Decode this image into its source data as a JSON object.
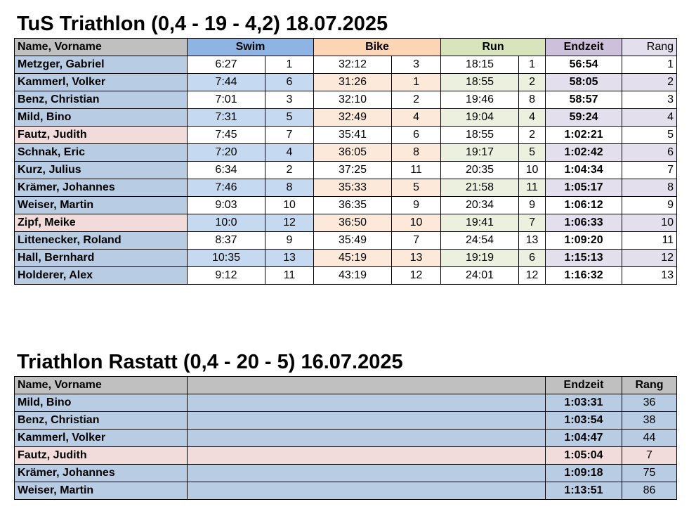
{
  "table1": {
    "title": "TuS Triathlon (0,4 - 19 - 4,2) 18.07.2025",
    "headers": {
      "name": "Name, Vorname",
      "swim": "Swim",
      "bike": "Bike",
      "run": "Run",
      "endzeit": "Endzeit",
      "rang": "Rang"
    },
    "colors": {
      "header_name": "#c0c0c0",
      "swim_header": "#8db4e2",
      "bike_header": "#fcd5b4",
      "run_header": "#d8e4bc",
      "endzeit_header": "#ccc0da",
      "rang_header": "#e4dfec",
      "name_blue": "#b8cce4",
      "name_pink": "#f2dcdb",
      "swim_cell": "#c5d9f1",
      "bike_cell": "#fde9d9",
      "run_cell": "#ebf1de",
      "end_cell": "#e4dfec"
    },
    "rows": [
      {
        "name": "Metzger, Gabriel",
        "swim": "6:27",
        "swim_rank": "1",
        "bike": "32:12",
        "bike_rank": "3",
        "run": "18:15",
        "run_rank": "1",
        "endzeit": "56:54",
        "rang": "1",
        "pink": false,
        "tint": false
      },
      {
        "name": "Kammerl, Volker",
        "swim": "7:44",
        "swim_rank": "6",
        "bike": "31:26",
        "bike_rank": "1",
        "run": "18:55",
        "run_rank": "2",
        "endzeit": "58:05",
        "rang": "2",
        "pink": false,
        "tint": true
      },
      {
        "name": "Benz, Christian",
        "swim": "7:01",
        "swim_rank": "3",
        "bike": "32:10",
        "bike_rank": "2",
        "run": "19:46",
        "run_rank": "8",
        "endzeit": "58:57",
        "rang": "3",
        "pink": false,
        "tint": false
      },
      {
        "name": "Mild, Bino",
        "swim": "7:31",
        "swim_rank": "5",
        "bike": "32:49",
        "bike_rank": "4",
        "run": "19:04",
        "run_rank": "4",
        "endzeit": "59:24",
        "rang": "4",
        "pink": false,
        "tint": true
      },
      {
        "name": "Fautz, Judith",
        "swim": "7:45",
        "swim_rank": "7",
        "bike": "35:41",
        "bike_rank": "6",
        "run": "18:55",
        "run_rank": "2",
        "endzeit": "1:02:21",
        "rang": "5",
        "pink": true,
        "tint": false
      },
      {
        "name": "Schnak, Eric",
        "swim": "7:20",
        "swim_rank": "4",
        "bike": "36:05",
        "bike_rank": "8",
        "run": "19:17",
        "run_rank": "5",
        "endzeit": "1:02:42",
        "rang": "6",
        "pink": false,
        "tint": true
      },
      {
        "name": "Kurz, Julius",
        "swim": "6:34",
        "swim_rank": "2",
        "bike": "37:25",
        "bike_rank": "11",
        "run": "20:35",
        "run_rank": "10",
        "endzeit": "1:04:34",
        "rang": "7",
        "pink": false,
        "tint": false
      },
      {
        "name": "Krämer, Johannes",
        "swim": "7:46",
        "swim_rank": "8",
        "bike": "35:33",
        "bike_rank": "5",
        "run": "21:58",
        "run_rank": "11",
        "endzeit": "1:05:17",
        "rang": "8",
        "pink": false,
        "tint": true
      },
      {
        "name": "Weiser, Martin",
        "swim": "9:03",
        "swim_rank": "10",
        "bike": "36:35",
        "bike_rank": "9",
        "run": "20:34",
        "run_rank": "9",
        "endzeit": "1:06:12",
        "rang": "9",
        "pink": false,
        "tint": false
      },
      {
        "name": "Zipf, Meike",
        "swim": "10:0",
        "swim_rank": "12",
        "bike": "36:50",
        "bike_rank": "10",
        "run": "19:41",
        "run_rank": "7",
        "endzeit": "1:06:33",
        "rang": "10",
        "pink": true,
        "tint": true
      },
      {
        "name": "Littenecker, Roland",
        "swim": "8:37",
        "swim_rank": "9",
        "bike": "35:49",
        "bike_rank": "7",
        "run": "24:54",
        "run_rank": "13",
        "endzeit": "1:09:20",
        "rang": "11",
        "pink": false,
        "tint": false
      },
      {
        "name": "Hall, Bernhard",
        "swim": "10:35",
        "swim_rank": "13",
        "bike": "45:19",
        "bike_rank": "13",
        "run": "19:19",
        "run_rank": "6",
        "endzeit": "1:15:13",
        "rang": "12",
        "pink": false,
        "tint": true
      },
      {
        "name": "Holderer, Alex",
        "swim": "9:12",
        "swim_rank": "11",
        "bike": "43:19",
        "bike_rank": "12",
        "run": "24:01",
        "run_rank": "12",
        "endzeit": "1:16:32",
        "rang": "13",
        "pink": false,
        "tint": false
      }
    ]
  },
  "table2": {
    "title": "Triathlon Rastatt (0,4 - 20 - 5) 16.07.2025",
    "headers": {
      "name": "Name, Vorname",
      "endzeit": "Endzeit",
      "rang": "Rang"
    },
    "colors": {
      "header": "#c0c0c0",
      "row_blue": "#b8cce4",
      "row_pink": "#f2dcdb"
    },
    "rows": [
      {
        "name": "Mild, Bino",
        "endzeit": "1:03:31",
        "rang": "36",
        "pink": false
      },
      {
        "name": "Benz, Christian",
        "endzeit": "1:03:54",
        "rang": "38",
        "pink": false
      },
      {
        "name": "Kammerl, Volker",
        "endzeit": "1:04:47",
        "rang": "44",
        "pink": false
      },
      {
        "name": "Fautz, Judith",
        "endzeit": "1:05:04",
        "rang": "7",
        "pink": true
      },
      {
        "name": "Krämer, Johannes",
        "endzeit": "1:09:18",
        "rang": "75",
        "pink": false
      },
      {
        "name": "Weiser, Martin",
        "endzeit": "1:13:51",
        "rang": "86",
        "pink": false
      }
    ]
  }
}
